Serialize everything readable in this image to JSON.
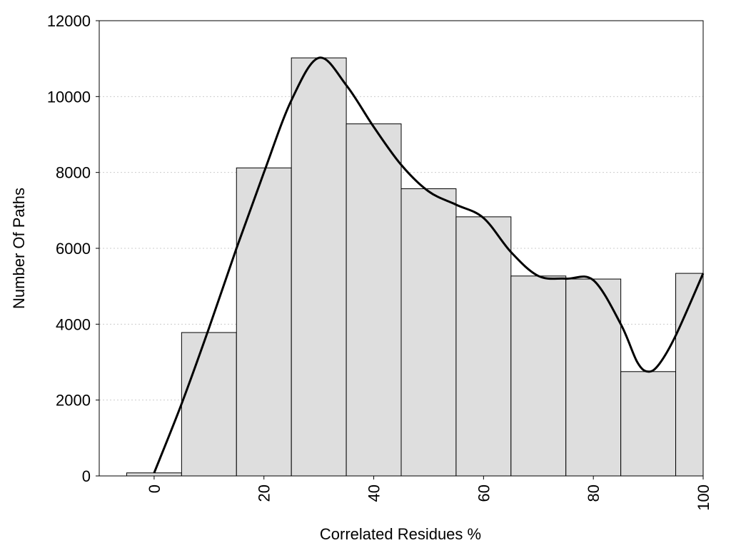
{
  "chart_data": {
    "type": "bar",
    "xlabel": "Correlated Residues %",
    "ylabel": "Number Of Paths",
    "xlim": [
      -10,
      100
    ],
    "ylim": [
      0,
      12000
    ],
    "xticks": [
      0,
      20,
      40,
      60,
      80,
      100
    ],
    "yticks": [
      0,
      2000,
      4000,
      6000,
      8000,
      10000,
      12000
    ],
    "grid": "horizontal dotted",
    "bar_width": 10,
    "bars": {
      "centers": [
        0,
        10,
        20,
        30,
        40,
        50,
        60,
        70,
        80,
        90,
        100
      ],
      "values": [
        80,
        3780,
        8120,
        11020,
        9280,
        7570,
        6830,
        5270,
        5190,
        2750,
        5340
      ]
    },
    "curve": {
      "x": [
        0,
        5,
        10,
        15,
        20,
        25,
        30,
        35,
        40,
        45,
        50,
        55,
        60,
        65,
        70,
        75,
        80,
        85,
        88,
        90,
        92,
        95,
        100
      ],
      "y": [
        80,
        1900,
        3900,
        6000,
        8000,
        9900,
        11020,
        10300,
        9200,
        8200,
        7500,
        7150,
        6800,
        5900,
        5270,
        5200,
        5160,
        4000,
        3000,
        2750,
        2950,
        3700,
        5340
      ]
    },
    "colors": {
      "bar_fill": "#dedede",
      "bar_stroke": "#000000",
      "curve": "#000000",
      "grid": "#cccccc"
    }
  }
}
